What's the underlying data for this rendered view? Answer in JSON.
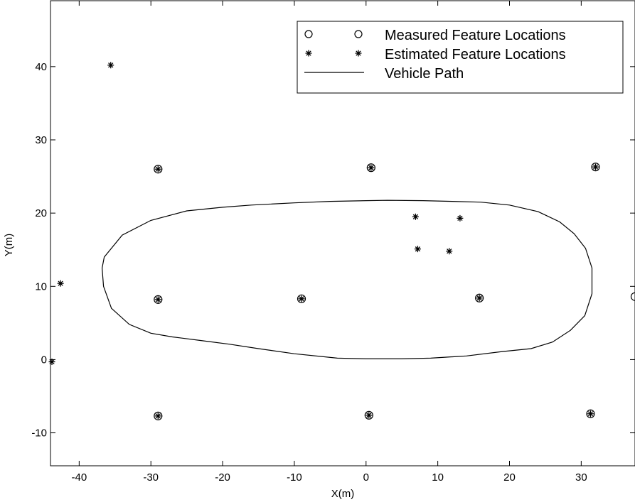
{
  "chart_data": {
    "type": "scatter",
    "xlabel": "X(m)",
    "ylabel": "Y(m)",
    "xlim": [
      -44,
      37.5
    ],
    "ylim": [
      -14.5,
      49
    ],
    "xticks": [
      -40,
      -30,
      -20,
      -10,
      0,
      10,
      20,
      30
    ],
    "yticks": [
      -10,
      0,
      10,
      20,
      30,
      40
    ],
    "grid": false,
    "legend_position": "top-right",
    "legend": [
      {
        "label": "Measured Feature Locations",
        "marker": "circle"
      },
      {
        "label": "Estimated Feature Locations",
        "marker": "star"
      },
      {
        "label": "Vehicle Path",
        "marker": "line"
      }
    ],
    "series": [
      {
        "name": "Measured Feature Locations",
        "marker": "circle",
        "points": [
          [
            -29,
            26
          ],
          [
            0.7,
            26.2
          ],
          [
            32,
            26.3
          ],
          [
            -29,
            8.2
          ],
          [
            -9,
            8.3
          ],
          [
            15.8,
            8.4
          ],
          [
            37.5,
            8.6
          ],
          [
            -29,
            -7.7
          ],
          [
            0.4,
            -7.6
          ],
          [
            31.3,
            -7.4
          ]
        ]
      },
      {
        "name": "Estimated Feature Locations",
        "marker": "star",
        "points": [
          [
            -35.6,
            40.2
          ],
          [
            -42.6,
            10.4
          ],
          [
            -43.8,
            -0.3
          ],
          [
            -29,
            26
          ],
          [
            0.7,
            26.2
          ],
          [
            32,
            26.3
          ],
          [
            -29,
            8.2
          ],
          [
            -9,
            8.3
          ],
          [
            15.8,
            8.4
          ],
          [
            -29,
            -7.7
          ],
          [
            0.4,
            -7.6
          ],
          [
            31.3,
            -7.4
          ],
          [
            6.9,
            19.5
          ],
          [
            13.1,
            19.3
          ],
          [
            7.2,
            15.1
          ],
          [
            11.6,
            14.8
          ]
        ]
      },
      {
        "name": "Vehicle Path",
        "marker": "line",
        "closed": true,
        "points": [
          [
            -36.5,
            14
          ],
          [
            -34,
            17
          ],
          [
            -30,
            19
          ],
          [
            -25,
            20.3
          ],
          [
            -20,
            20.8
          ],
          [
            -16,
            21.1
          ],
          [
            -10,
            21.4
          ],
          [
            -5,
            21.6
          ],
          [
            0,
            21.7
          ],
          [
            3,
            21.75
          ],
          [
            8,
            21.7
          ],
          [
            12,
            21.6
          ],
          [
            16,
            21.5
          ],
          [
            20,
            21.1
          ],
          [
            24,
            20.2
          ],
          [
            27,
            18.8
          ],
          [
            29,
            17.2
          ],
          [
            30.6,
            15.2
          ],
          [
            31.5,
            12.5
          ],
          [
            31.5,
            9
          ],
          [
            30.5,
            6
          ],
          [
            28.5,
            4
          ],
          [
            26,
            2.4
          ],
          [
            23,
            1.5
          ],
          [
            19,
            1.1
          ],
          [
            14,
            0.5
          ],
          [
            9,
            0.2
          ],
          [
            5,
            0.1
          ],
          [
            0,
            0.1
          ],
          [
            -4,
            0.2
          ],
          [
            -10,
            0.8
          ],
          [
            -15,
            1.5
          ],
          [
            -19,
            2.1
          ],
          [
            -23,
            2.6
          ],
          [
            -27,
            3.1
          ],
          [
            -30,
            3.6
          ],
          [
            -33,
            4.8
          ],
          [
            -35.5,
            7
          ],
          [
            -36.6,
            10
          ],
          [
            -36.8,
            12.5
          ]
        ]
      }
    ]
  }
}
